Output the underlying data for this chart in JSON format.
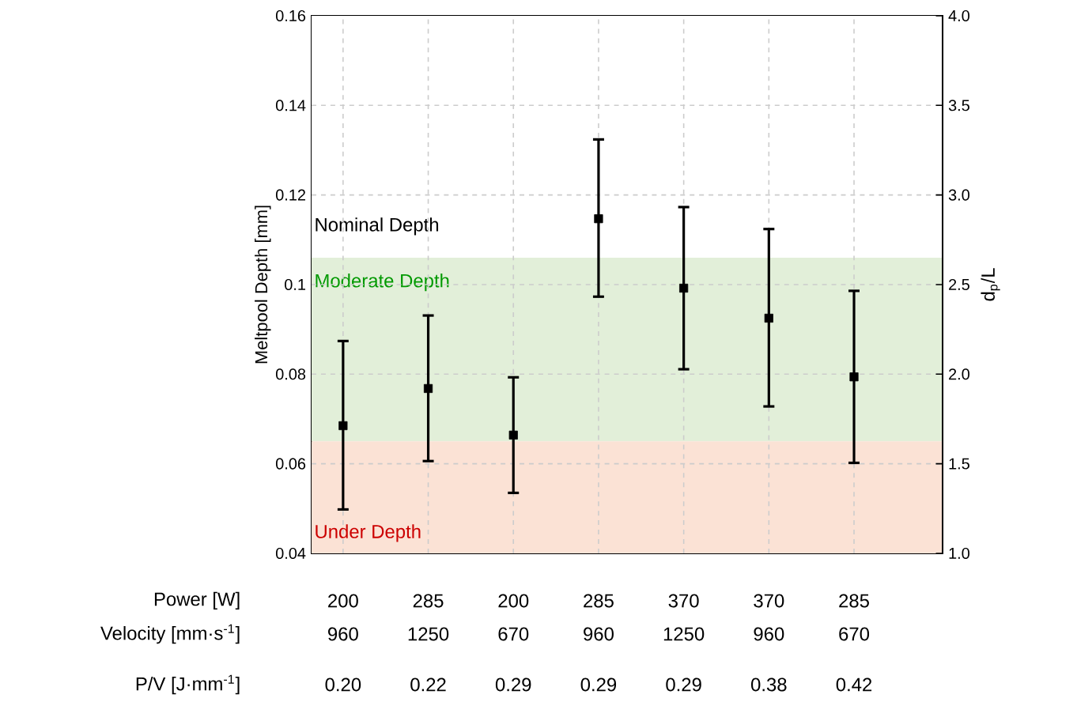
{
  "chart_data": {
    "type": "scatter",
    "categories": [
      "200",
      "285",
      "200",
      "285",
      "370",
      "370",
      "285"
    ],
    "xlabel": "Power [W]",
    "ylabel": "Meltpool Depth [mm]",
    "y2label": "d$_{p}$/L",
    "series": [
      {
        "color": "#000000",
        "values": [
          0.0685,
          0.0768,
          0.0664,
          0.1147,
          0.0992,
          0.0925,
          0.0794
        ],
        "errors": [
          [
            0.0498,
            0.0874
          ],
          [
            0.0606,
            0.0931
          ],
          [
            0.0535,
            0.0793
          ],
          [
            0.0973,
            0.1324
          ],
          [
            0.0811,
            0.1173
          ],
          [
            0.0728,
            0.1124
          ],
          [
            0.0602,
            0.0986
          ]
        ]
      }
    ],
    "ylim": [
      0.04,
      0.16
    ],
    "yticks": [
      0.04,
      0.06,
      0.08,
      0.1,
      0.12,
      0.14,
      0.16
    ],
    "y2lim": [
      1.0,
      4.0
    ],
    "y2ticks": [
      {
        "value": 1.0,
        "label": "1.0"
      },
      {
        "value": 1.5,
        "label": "1.5"
      },
      {
        "value": 2.0,
        "label": "2.0"
      },
      {
        "value": 2.5,
        "label": "2.5"
      },
      {
        "value": 3.0,
        "label": "3.0"
      },
      {
        "value": 3.5,
        "label": "3.5"
      },
      {
        "value": 4.0,
        "label": "4.0"
      }
    ],
    "bands": [
      {
        "axis": "y",
        "from": 0.106,
        "to": 0.16,
        "label": "Nominal Depth",
        "color": "#ffffff"
      },
      {
        "axis": "y",
        "from": 0.065,
        "to": 0.106,
        "label": "Moderate Depth",
        "color": "#e2efd9"
      },
      {
        "axis": "y",
        "from": 0.04,
        "to": 0.065,
        "label": "Under Depth",
        "color": "#fbe2d5"
      }
    ],
    "annotations": [
      "Velocity [mm·s$^{-1}$]",
      "960",
      "1250",
      "670",
      "960",
      "1250",
      "960",
      "670",
      "P/V [J·mm$^{-1}$]",
      "0.20",
      "0.22",
      "0.29",
      "0.29",
      "0.29",
      "0.38",
      "0.42"
    ],
    "grid": true,
    "marker": "square"
  }
}
